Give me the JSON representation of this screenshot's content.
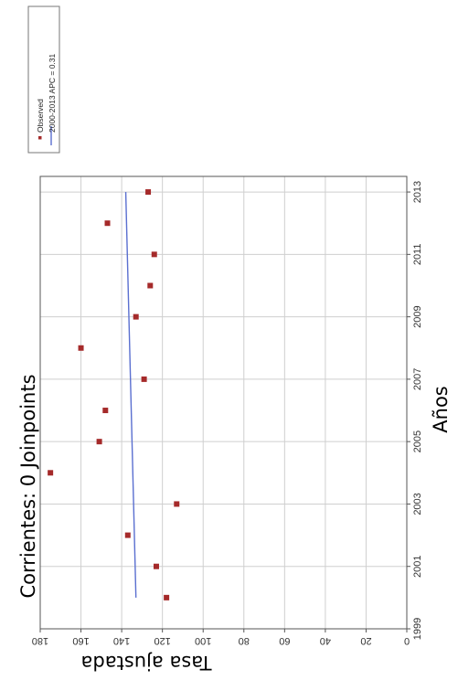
{
  "chart_data": {
    "type": "scatter",
    "orientation": "rotated-90-clockwise",
    "title": "Corrientes: 0 Joinpoints",
    "xlabel": "Años",
    "ylabel": "Tasa ajustada",
    "xlim": [
      1999,
      2013.5
    ],
    "ylim": [
      0,
      180
    ],
    "x_ticks": [
      1999,
      2001,
      2003,
      2005,
      2007,
      2009,
      2011,
      2013
    ],
    "y_ticks": [
      0,
      20,
      40,
      60,
      80,
      100,
      120,
      140,
      160,
      180
    ],
    "grid": true,
    "legend_placement": "top-right",
    "series": [
      {
        "name": "Observed",
        "kind": "points",
        "color": "#a52a2a",
        "points": [
          {
            "x": 2000,
            "y": 118
          },
          {
            "x": 2001,
            "y": 123
          },
          {
            "x": 2002,
            "y": 137
          },
          {
            "x": 2003,
            "y": 113
          },
          {
            "x": 2004,
            "y": 175
          },
          {
            "x": 2005,
            "y": 151
          },
          {
            "x": 2006,
            "y": 148
          },
          {
            "x": 2007,
            "y": 129
          },
          {
            "x": 2008,
            "y": 160
          },
          {
            "x": 2009,
            "y": 133
          },
          {
            "x": 2010,
            "y": 126
          },
          {
            "x": 2011,
            "y": 124
          },
          {
            "x": 2012,
            "y": 147
          },
          {
            "x": 2013,
            "y": 127
          }
        ]
      },
      {
        "name": "2000-2013 APC = 0.31",
        "kind": "line",
        "color": "#5a6fd0",
        "points": [
          {
            "x": 2000,
            "y": 133
          },
          {
            "x": 2013,
            "y": 138
          }
        ]
      }
    ]
  }
}
